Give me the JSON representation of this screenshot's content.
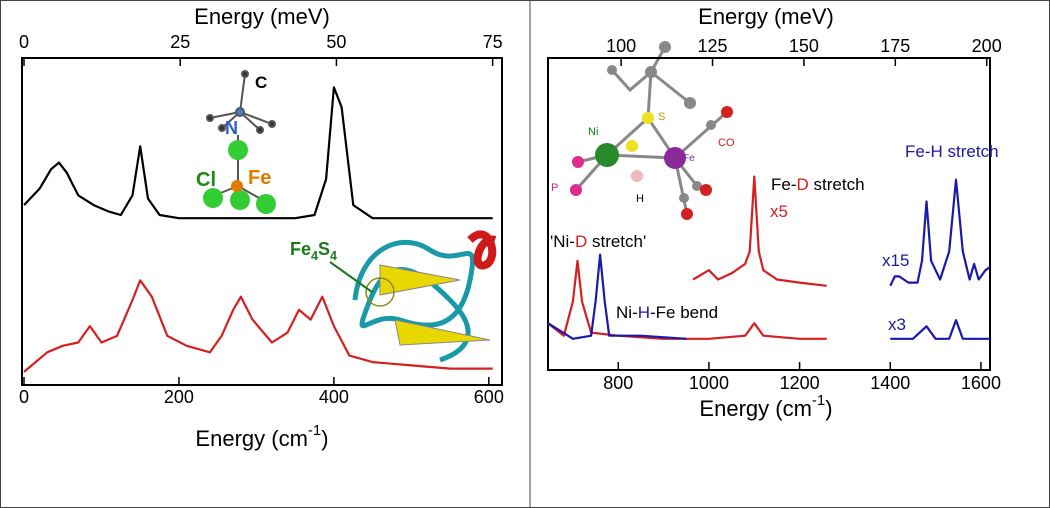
{
  "chart_data": [
    {
      "type": "line",
      "top_label": "Energy (meV)",
      "x_label": [
        "Energy (cm",
        "-1",
        ")"
      ],
      "xlim": [
        0,
        617
      ],
      "xticks": [
        0,
        200,
        400,
        600
      ],
      "top_xlim": [
        0,
        76.5
      ],
      "top_xticks": [
        0,
        25,
        50,
        75
      ],
      "ylim": [
        0,
        1
      ],
      "series": [
        {
          "color": "#000000",
          "x": [
            0,
            20,
            35,
            45,
            55,
            70,
            90,
            110,
            125,
            140,
            150,
            160,
            175,
            200,
            250,
            300,
            350,
            375,
            390,
            400,
            410,
            425,
            450,
            500,
            550,
            605
          ],
          "values": [
            0.55,
            0.6,
            0.66,
            0.68,
            0.65,
            0.58,
            0.55,
            0.53,
            0.52,
            0.58,
            0.73,
            0.57,
            0.52,
            0.51,
            0.51,
            0.51,
            0.51,
            0.52,
            0.63,
            0.91,
            0.85,
            0.55,
            0.51,
            0.51,
            0.51,
            0.51
          ]
        },
        {
          "color": "#d42020",
          "x": [
            0,
            15,
            30,
            50,
            70,
            85,
            100,
            120,
            140,
            150,
            165,
            185,
            210,
            240,
            255,
            270,
            280,
            295,
            320,
            340,
            355,
            370,
            385,
            400,
            420,
            450,
            500,
            550,
            605
          ],
          "values": [
            0.04,
            0.07,
            0.1,
            0.12,
            0.13,
            0.18,
            0.13,
            0.15,
            0.26,
            0.32,
            0.27,
            0.15,
            0.12,
            0.1,
            0.15,
            0.23,
            0.27,
            0.2,
            0.13,
            0.16,
            0.23,
            0.2,
            0.27,
            0.18,
            0.09,
            0.07,
            0.06,
            0.05,
            0.05
          ]
        }
      ],
      "annotations": [
        {
          "text": [
            "C"
          ],
          "colors": [
            "#000000"
          ]
        },
        {
          "text": [
            "N"
          ],
          "colors": [
            "#2a5fc8"
          ]
        },
        {
          "text": [
            "Cl"
          ],
          "colors": [
            "#1a8a1a"
          ]
        },
        {
          "text": [
            "Fe"
          ],
          "colors": [
            "#e07b00"
          ]
        },
        {
          "text": [
            "Fe",
            "4",
            "S",
            "4"
          ],
          "colors": [
            "#1a7a1a",
            "#1a7a1a",
            "#1a7a1a",
            "#1a7a1a"
          ]
        }
      ]
    },
    {
      "type": "line",
      "top_label": "Energy (meV)",
      "x_label": [
        "Energy (cm",
        "-1",
        ")"
      ],
      "xlim": [
        645,
        1620
      ],
      "xticks": [
        800,
        1000,
        1200,
        1400,
        1600
      ],
      "top_xlim": [
        80,
        200.9
      ],
      "top_xticks": [
        100,
        125,
        150,
        175,
        200
      ],
      "ylim": [
        0,
        1
      ],
      "series": [
        {
          "color": "#d42020",
          "x": [
            645,
            680,
            700,
            710,
            720,
            740,
            800,
            900,
            1000,
            1080,
            1100,
            1120,
            1200,
            1260
          ],
          "values": [
            0.15,
            0.11,
            0.22,
            0.35,
            0.22,
            0.12,
            0.11,
            0.1,
            0.1,
            0.11,
            0.15,
            0.11,
            0.1,
            0.1
          ]
        },
        {
          "color": "#d42020",
          "x": [
            965,
            1000,
            1020,
            1050,
            1080,
            1090,
            1100,
            1110,
            1120,
            1150,
            1200,
            1260
          ],
          "values": [
            0.29,
            0.32,
            0.29,
            0.31,
            0.34,
            0.38,
            0.62,
            0.38,
            0.32,
            0.29,
            0.28,
            0.27
          ]
        },
        {
          "color": "#1a1aaa",
          "x": [
            645,
            700,
            740,
            750,
            760,
            770,
            780,
            850,
            950,
            1175,
            1400,
            1450,
            1480,
            1500,
            1530,
            1545,
            1560,
            1600,
            1620
          ],
          "values": [
            0.15,
            0.1,
            0.11,
            0.22,
            0.37,
            0.22,
            0.11,
            0.11,
            0.1,
            null,
            0.1,
            0.1,
            0.14,
            0.1,
            0.1,
            0.16,
            0.1,
            0.1,
            0.1
          ]
        },
        {
          "color": "#1a1aaa",
          "x": [
            1400,
            1410,
            1420,
            1440,
            1460,
            1470,
            1480,
            1490,
            1510,
            1530,
            1545,
            1560,
            1575,
            1585,
            1595,
            1610,
            1620
          ],
          "values": [
            0.27,
            0.3,
            0.3,
            0.28,
            0.28,
            0.35,
            0.54,
            0.35,
            0.29,
            0.38,
            0.61,
            0.38,
            0.29,
            0.34,
            0.29,
            0.32,
            0.33
          ]
        }
      ],
      "annotations": [
        {
          "text": [
            "'Ni-",
            "D",
            " stretch'"
          ],
          "colors": [
            "#000000",
            "#d42020",
            "#000000"
          ]
        },
        {
          "text": [
            "Ni-",
            "H",
            "-Fe bend"
          ],
          "colors": [
            "#000000",
            "#1a1aaa",
            "#000000"
          ]
        },
        {
          "text": [
            "Fe-",
            "D",
            " stretch"
          ],
          "colors": [
            "#000000",
            "#d42020",
            "#000000"
          ]
        },
        {
          "text": [
            "x5"
          ],
          "colors": [
            "#d42020"
          ]
        },
        {
          "text": [
            "Fe-",
            "H",
            " stretch"
          ],
          "colors": [
            "#1a1aaa",
            "#1a1aaa",
            "#1a1aaa"
          ]
        },
        {
          "text": [
            "x15"
          ],
          "colors": [
            "#1a1aaa"
          ]
        },
        {
          "text": [
            "x3"
          ],
          "colors": [
            "#1a1aaa"
          ]
        },
        {
          "text": [
            "Ni"
          ],
          "colors": [
            "#1a7a1a"
          ]
        },
        {
          "text": [
            "S"
          ],
          "colors": [
            "#c89a00"
          ]
        },
        {
          "text": [
            "CO"
          ],
          "colors": [
            "#d42020"
          ]
        },
        {
          "text": [
            "Fe"
          ],
          "colors": [
            "#7a2a9a"
          ]
        },
        {
          "text": [
            "P"
          ],
          "colors": [
            "#d0207a"
          ]
        },
        {
          "text": [
            "H"
          ],
          "colors": [
            "#000000"
          ]
        }
      ]
    }
  ]
}
